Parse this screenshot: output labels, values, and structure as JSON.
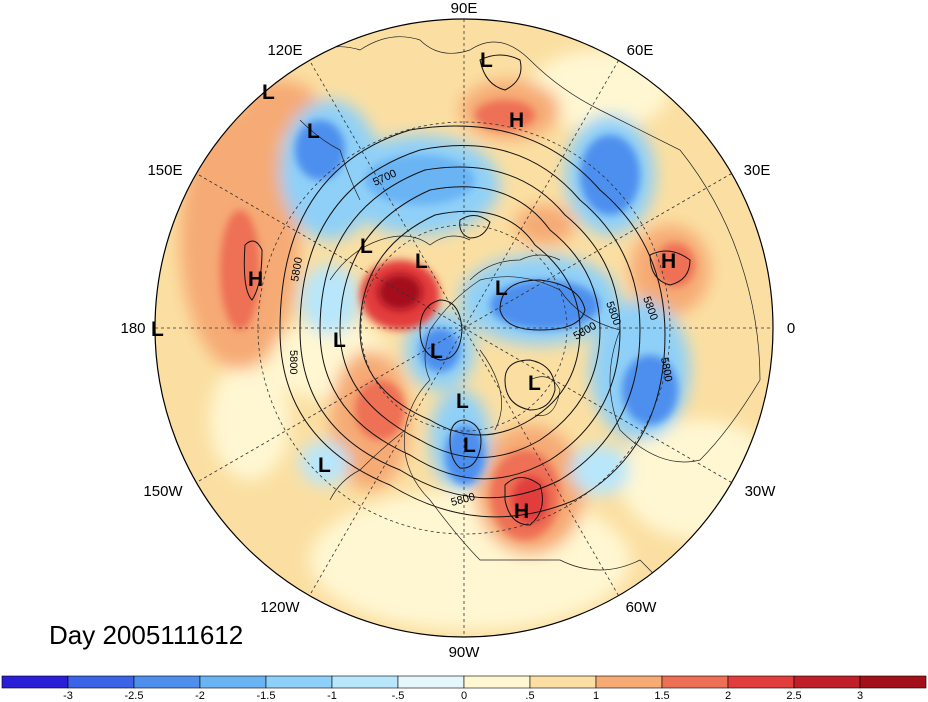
{
  "title": "Day 2005111612",
  "longitude_labels": [
    "90E",
    "60E",
    "30E",
    "0",
    "30W",
    "60W",
    "90W",
    "120W",
    "150W",
    "180",
    "150E",
    "120E"
  ],
  "contour_labels": [
    "5700",
    "5800",
    "5800",
    "5800",
    "5800",
    "5800",
    "5800",
    "5800"
  ],
  "centers": [
    "L",
    "H",
    "L",
    "L",
    "L",
    "H",
    "L",
    "L",
    "H",
    "L",
    "L",
    "L",
    "L",
    "L",
    "L",
    "L",
    "L",
    "L",
    "L",
    "H"
  ],
  "colorbar": {
    "ticks": [
      "-3",
      "-2.5",
      "-2",
      "-1.5",
      "-1",
      "-.5",
      "0",
      ".5",
      "1",
      "1.5",
      "2",
      "2.5",
      "3"
    ],
    "colors": [
      "#2a1ed6",
      "#3a63e8",
      "#4e8fee",
      "#6ab4f4",
      "#8fd0f8",
      "#b8e6fb",
      "#e6f7fc",
      "#fff7d2",
      "#fbdfa2",
      "#f6aa74",
      "#ee7054",
      "#e23c3c",
      "#c01e28",
      "#a3101a"
    ]
  },
  "colors": {
    "warm": "#fbdfa2",
    "hot": "#e23c3c",
    "cold": "#4e8fee"
  }
}
